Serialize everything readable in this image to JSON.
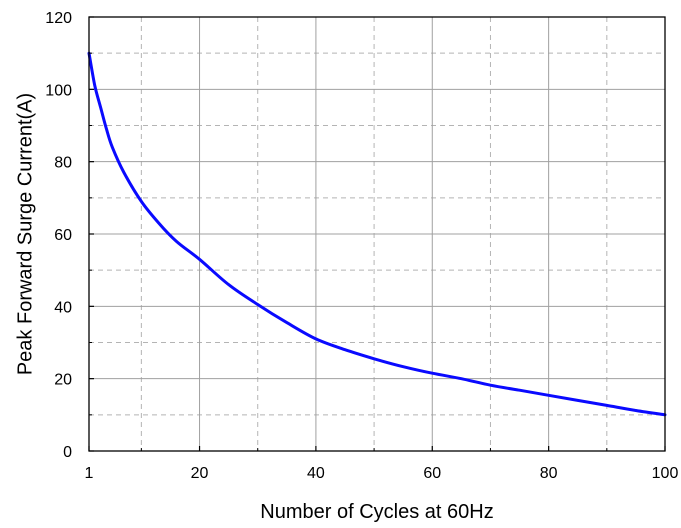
{
  "chart_data": {
    "type": "line",
    "xlabel": "Number of Cycles at 60Hz",
    "ylabel": "Peak Forward Surge Current(A)",
    "xlim": [
      1,
      100
    ],
    "ylim": [
      0,
      120
    ],
    "x_ticks": [
      1,
      20,
      40,
      60,
      80,
      100
    ],
    "y_ticks": [
      0,
      20,
      40,
      60,
      80,
      100,
      120
    ],
    "x_minor_grid": [
      10,
      30,
      50,
      70,
      90
    ],
    "y_minor_grid": [
      10,
      30,
      50,
      70,
      90,
      110
    ],
    "grid": true,
    "legend": "none",
    "series": [
      {
        "color": "#0a0aff",
        "x": [
          1,
          2,
          3,
          4,
          5,
          7,
          10,
          13,
          16,
          20,
          25,
          30,
          35,
          40,
          45,
          50,
          55,
          60,
          65,
          70,
          75,
          80,
          85,
          90,
          95,
          100
        ],
        "y": [
          110,
          101,
          95,
          89,
          84,
          77,
          69,
          63,
          58,
          53,
          46,
          40.5,
          35.5,
          31,
          28,
          25.5,
          23.3,
          21.5,
          20,
          18.2,
          16.8,
          15.4,
          14,
          12.6,
          11.2,
          10
        ]
      }
    ]
  }
}
